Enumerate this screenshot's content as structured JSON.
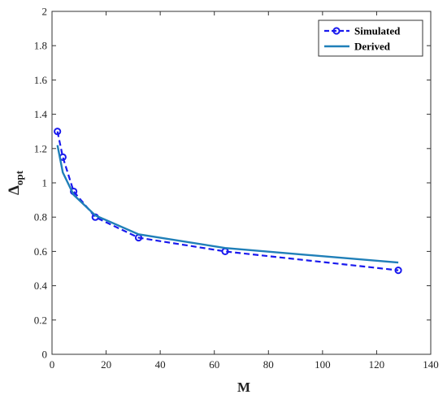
{
  "chart_data": {
    "type": "line",
    "xlabel": "M",
    "ylabel": {
      "main": "Δ",
      "sub": "opt"
    },
    "xlim": [
      0,
      140
    ],
    "ylim": [
      0,
      2
    ],
    "xticks": [
      "0",
      "20",
      "40",
      "60",
      "80",
      "100",
      "120",
      "140"
    ],
    "yticks": [
      "0",
      "0.2",
      "0.4",
      "0.6",
      "0.8",
      "1",
      "1.2",
      "1.4",
      "1.6",
      "1.8",
      "2"
    ],
    "grid": false,
    "legend_position": "top-right",
    "series": [
      {
        "name": "Simulated",
        "style": "dashed-circles",
        "color": "#1a1aee",
        "x": [
          2,
          4,
          8,
          16,
          32,
          64,
          128
        ],
        "y": [
          1.3,
          1.15,
          0.95,
          0.8,
          0.68,
          0.6,
          0.49
        ]
      },
      {
        "name": "Derived",
        "style": "solid",
        "color": "#1f7fb8",
        "x": [
          2,
          4,
          8,
          16,
          32,
          64,
          128
        ],
        "y": [
          1.22,
          1.06,
          0.93,
          0.81,
          0.7,
          0.62,
          0.535
        ]
      }
    ]
  }
}
